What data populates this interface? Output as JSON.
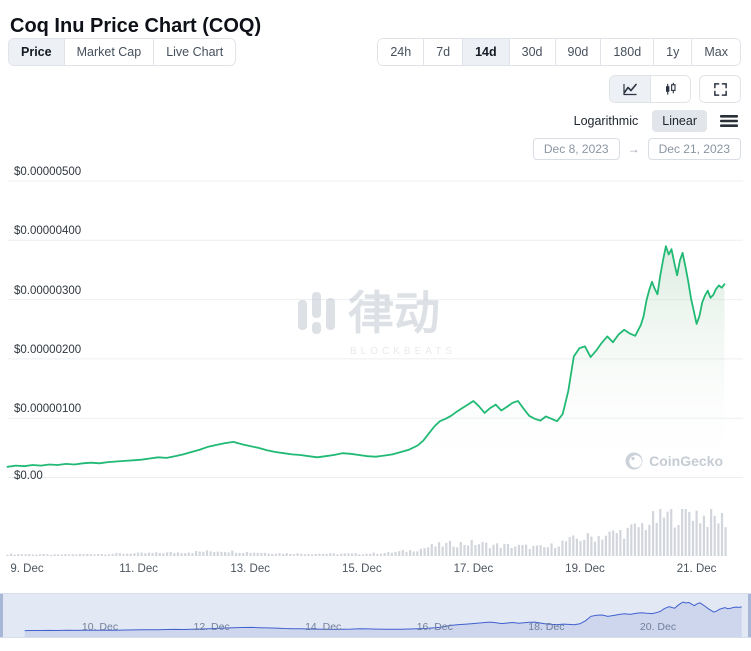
{
  "header": {
    "title": "Coq Inu Price Chart (COQ)"
  },
  "toolbar": {
    "tabs": [
      {
        "label": "Price",
        "selected": true
      },
      {
        "label": "Market Cap",
        "selected": false
      },
      {
        "label": "Live Chart",
        "selected": false
      }
    ],
    "ranges": [
      {
        "label": "24h",
        "selected": false
      },
      {
        "label": "7d",
        "selected": false
      },
      {
        "label": "14d",
        "selected": true
      },
      {
        "label": "30d",
        "selected": false
      },
      {
        "label": "90d",
        "selected": false
      },
      {
        "label": "180d",
        "selected": false
      },
      {
        "label": "1y",
        "selected": false
      },
      {
        "label": "Max",
        "selected": false
      }
    ],
    "chart_types": [
      {
        "name": "line-chart",
        "selected": true
      },
      {
        "name": "candlestick-chart",
        "selected": false
      },
      {
        "name": "fullscreen",
        "selected": false
      }
    ],
    "scale": {
      "logarithmic": "Logarithmic",
      "linear": "Linear",
      "selected": "Linear"
    },
    "date_from": "Dec 8, 2023",
    "date_to": "Dec 21, 2023",
    "arrow": "→"
  },
  "watermarks": {
    "center": "律动",
    "center_sub": "BLOCKBEATS",
    "corner": "CoinGecko"
  },
  "chart_data": {
    "type": "line",
    "title": "Coq Inu Price Chart (COQ)",
    "currency": "USD",
    "price_unit_note": "point values are in 1e-8 USD (e.g. 20 = $0.00000020)",
    "y_ticks": [
      "$0.00000500",
      "$0.00000400",
      "$0.00000300",
      "$0.00000200",
      "$0.00000100",
      "$0.00"
    ],
    "y_ticks_e8": [
      500,
      400,
      300,
      200,
      100,
      0
    ],
    "ylim_e8": [
      0,
      535
    ],
    "x_tick_labels": [
      "9. Dec",
      "11. Dec",
      "13. Dec",
      "15. Dec",
      "17. Dec",
      "19. Dec",
      "21. Dec"
    ],
    "x_tick_days": [
      9,
      11,
      13,
      15,
      17,
      19,
      21
    ],
    "x_range_days": [
      8.65,
      21.55
    ],
    "grid": true,
    "legend": "none",
    "colors": {
      "line": "#21ba74",
      "area_top": "rgba(167,207,178,0.40)",
      "area_bottom": "rgba(255,255,255,0)",
      "volume": "#d2d6dc",
      "grid": "#eceff2",
      "navigator_line": "#3a5bd0",
      "navigator_fill": "rgba(76,104,205,0.14)",
      "navigator_mask": "rgba(130,150,210,0.10)",
      "navigator_handle": "#a9b7d6"
    },
    "series": [
      {
        "name": "COQ price (USD)",
        "points_e8": [
          [
            8.65,
            18
          ],
          [
            8.8,
            20
          ],
          [
            8.95,
            19
          ],
          [
            9.1,
            21
          ],
          [
            9.25,
            20
          ],
          [
            9.4,
            22
          ],
          [
            9.55,
            21
          ],
          [
            9.7,
            23
          ],
          [
            9.85,
            22
          ],
          [
            10.0,
            24
          ],
          [
            10.15,
            25
          ],
          [
            10.3,
            24
          ],
          [
            10.45,
            26
          ],
          [
            10.6,
            27
          ],
          [
            10.75,
            28
          ],
          [
            10.9,
            29
          ],
          [
            11.05,
            30
          ],
          [
            11.2,
            32
          ],
          [
            11.35,
            34
          ],
          [
            11.5,
            33
          ],
          [
            11.65,
            36
          ],
          [
            11.8,
            39
          ],
          [
            11.95,
            43
          ],
          [
            12.1,
            47
          ],
          [
            12.25,
            52
          ],
          [
            12.4,
            55
          ],
          [
            12.55,
            58
          ],
          [
            12.7,
            60
          ],
          [
            12.85,
            56
          ],
          [
            13.0,
            53
          ],
          [
            13.15,
            50
          ],
          [
            13.3,
            46
          ],
          [
            13.45,
            43
          ],
          [
            13.6,
            41
          ],
          [
            13.75,
            39
          ],
          [
            13.9,
            38
          ],
          [
            14.05,
            36
          ],
          [
            14.2,
            34
          ],
          [
            14.35,
            36
          ],
          [
            14.5,
            38
          ],
          [
            14.65,
            41
          ],
          [
            14.8,
            40
          ],
          [
            14.95,
            38
          ],
          [
            15.1,
            36
          ],
          [
            15.25,
            35
          ],
          [
            15.4,
            37
          ],
          [
            15.55,
            39
          ],
          [
            15.7,
            43
          ],
          [
            15.85,
            47
          ],
          [
            16.0,
            54
          ],
          [
            16.1,
            62
          ],
          [
            16.2,
            74
          ],
          [
            16.3,
            86
          ],
          [
            16.4,
            95
          ],
          [
            16.5,
            99
          ],
          [
            16.6,
            104
          ],
          [
            16.7,
            111
          ],
          [
            16.8,
            117
          ],
          [
            16.9,
            123
          ],
          [
            17.0,
            129
          ],
          [
            17.1,
            120
          ],
          [
            17.2,
            109
          ],
          [
            17.3,
            117
          ],
          [
            17.4,
            123
          ],
          [
            17.5,
            113
          ],
          [
            17.6,
            119
          ],
          [
            17.7,
            126
          ],
          [
            17.8,
            129
          ],
          [
            17.9,
            116
          ],
          [
            18.0,
            104
          ],
          [
            18.1,
            99
          ],
          [
            18.2,
            96
          ],
          [
            18.3,
            103
          ],
          [
            18.4,
            99
          ],
          [
            18.5,
            95
          ],
          [
            18.6,
            107
          ],
          [
            18.7,
            146
          ],
          [
            18.8,
            204
          ],
          [
            18.9,
            218
          ],
          [
            19.0,
            221
          ],
          [
            19.1,
            203
          ],
          [
            19.2,
            214
          ],
          [
            19.3,
            227
          ],
          [
            19.4,
            238
          ],
          [
            19.5,
            228
          ],
          [
            19.6,
            241
          ],
          [
            19.7,
            249
          ],
          [
            19.8,
            243
          ],
          [
            19.9,
            239
          ],
          [
            20.0,
            257
          ],
          [
            20.05,
            272
          ],
          [
            20.1,
            298
          ],
          [
            20.15,
            316
          ],
          [
            20.2,
            330
          ],
          [
            20.25,
            318
          ],
          [
            20.3,
            309
          ],
          [
            20.35,
            341
          ],
          [
            20.4,
            367
          ],
          [
            20.45,
            390
          ],
          [
            20.5,
            376
          ],
          [
            20.55,
            385
          ],
          [
            20.6,
            362
          ],
          [
            20.65,
            341
          ],
          [
            20.7,
            366
          ],
          [
            20.75,
            379
          ],
          [
            20.8,
            356
          ],
          [
            20.85,
            331
          ],
          [
            20.9,
            302
          ],
          [
            20.95,
            281
          ],
          [
            21.0,
            259
          ],
          [
            21.05,
            272
          ],
          [
            21.1,
            295
          ],
          [
            21.15,
            307
          ],
          [
            21.2,
            315
          ],
          [
            21.25,
            303
          ],
          [
            21.3,
            308
          ],
          [
            21.35,
            318
          ],
          [
            21.4,
            324
          ],
          [
            21.45,
            320
          ],
          [
            21.5,
            326
          ]
        ]
      }
    ],
    "volume_profile_relative": [
      [
        8.5,
        4
      ],
      [
        9,
        4
      ],
      [
        9.5,
        3
      ],
      [
        10,
        4
      ],
      [
        10.5,
        5
      ],
      [
        11,
        6
      ],
      [
        11.5,
        7
      ],
      [
        12,
        9
      ],
      [
        12.5,
        11
      ],
      [
        13,
        8
      ],
      [
        13.5,
        6
      ],
      [
        14,
        5
      ],
      [
        14.5,
        5
      ],
      [
        15,
        5
      ],
      [
        15.5,
        7
      ],
      [
        16,
        14
      ],
      [
        16.3,
        22
      ],
      [
        16.6,
        26
      ],
      [
        17,
        28
      ],
      [
        17.3,
        24
      ],
      [
        17.6,
        22
      ],
      [
        18,
        20
      ],
      [
        18.3,
        18
      ],
      [
        18.6,
        30
      ],
      [
        18.9,
        38
      ],
      [
        19.2,
        42
      ],
      [
        19.5,
        48
      ],
      [
        19.8,
        55
      ],
      [
        20.1,
        70
      ],
      [
        20.4,
        85
      ],
      [
        20.7,
        90
      ],
      [
        20.9,
        100
      ],
      [
        21.1,
        85
      ],
      [
        21.4,
        80
      ],
      [
        21.6,
        78
      ]
    ],
    "navigator": {
      "labels": [
        "10. Dec",
        "12. Dec",
        "14. Dec",
        "16. Dec",
        "18. Dec",
        "20. Dec"
      ],
      "days": [
        10,
        12,
        14,
        16,
        18,
        20
      ],
      "selection": "full range"
    }
  }
}
